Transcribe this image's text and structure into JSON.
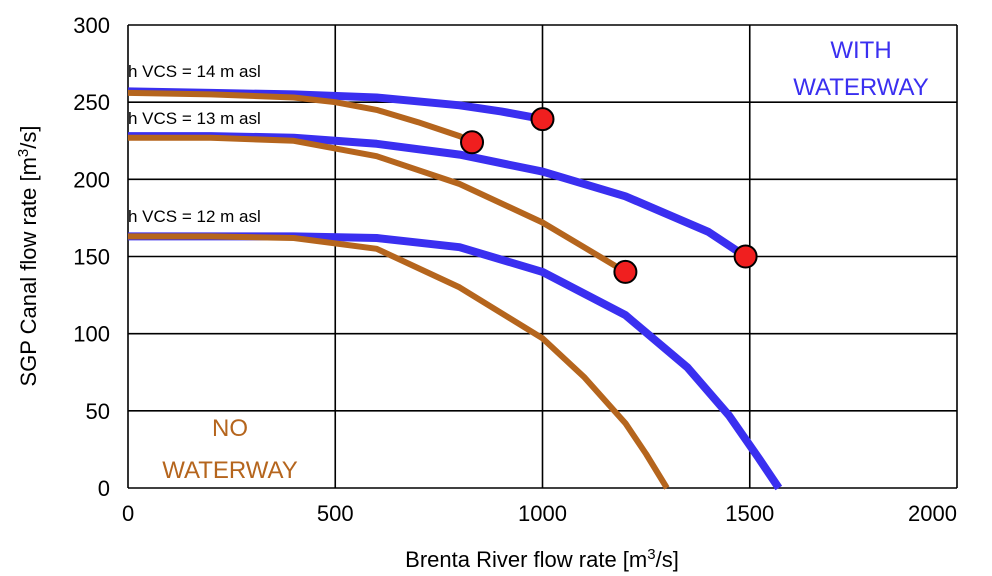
{
  "chart_data": {
    "type": "line",
    "xlabel": "Brenta River flow rate [m",
    "xlabel_sup": "3",
    "xlabel_tail": "/s]",
    "ylabel": "SGP Canal flow rate [m",
    "ylabel_sup": "3",
    "ylabel_tail": "/s]",
    "xlim": [
      0,
      2000
    ],
    "ylim": [
      0,
      300
    ],
    "x_ticks": [
      0,
      500,
      1000,
      1500,
      2000
    ],
    "y_ticks": [
      0,
      50,
      100,
      150,
      200,
      250,
      300
    ],
    "grid": true,
    "colors": {
      "with_waterway": "#3a2ff0",
      "no_waterway": "#b5651d",
      "marker": "#f01f1f"
    },
    "annotations": [
      {
        "id": "with-waterway-line1",
        "text": "WITH",
        "color": "#3a2ff0"
      },
      {
        "id": "with-waterway-line2",
        "text": "WATERWAY",
        "color": "#3a2ff0"
      },
      {
        "id": "no-waterway-line1",
        "text": "NO",
        "color": "#b5651d"
      },
      {
        "id": "no-waterway-line2",
        "text": "WATERWAY",
        "color": "#b5651d"
      },
      {
        "id": "label-14",
        "text": "h VCS = 14 m asl",
        "color": "#000000"
      },
      {
        "id": "label-13",
        "text": "h VCS = 13 m asl",
        "color": "#000000"
      },
      {
        "id": "label-12",
        "text": "h VCS = 12 m asl",
        "color": "#000000"
      }
    ],
    "series": [
      {
        "group": "with_waterway",
        "level": "14",
        "x": [
          0,
          200,
          400,
          600,
          800,
          900,
          1000
        ],
        "y": [
          257,
          256,
          255,
          253,
          248,
          244,
          239
        ]
      },
      {
        "group": "no_waterway",
        "level": "14",
        "x": [
          0,
          200,
          400,
          500,
          600,
          700,
          800,
          830
        ],
        "y": [
          256,
          255,
          253,
          250,
          245,
          237,
          228,
          224
        ]
      },
      {
        "group": "with_waterway",
        "level": "13",
        "x": [
          0,
          200,
          400,
          600,
          800,
          1000,
          1200,
          1400,
          1490
        ],
        "y": [
          228,
          228,
          227,
          223,
          216,
          205,
          189,
          166,
          150
        ]
      },
      {
        "group": "no_waterway",
        "level": "13",
        "x": [
          0,
          200,
          400,
          600,
          800,
          1000,
          1100,
          1200
        ],
        "y": [
          227,
          227,
          225,
          215,
          197,
          172,
          156,
          140
        ]
      },
      {
        "group": "with_waterway",
        "level": "12",
        "x": [
          0,
          200,
          400,
          600,
          800,
          1000,
          1200,
          1350,
          1450,
          1520,
          1570
        ],
        "y": [
          163,
          163,
          163,
          162,
          156,
          140,
          112,
          78,
          47,
          20,
          0
        ]
      },
      {
        "group": "no_waterway",
        "level": "12",
        "x": [
          0,
          200,
          400,
          600,
          800,
          1000,
          1100,
          1200,
          1250,
          1300
        ],
        "y": [
          163,
          163,
          162,
          155,
          130,
          97,
          72,
          42,
          22,
          0
        ]
      }
    ],
    "markers": [
      {
        "x": 1000,
        "y": 239
      },
      {
        "x": 830,
        "y": 224
      },
      {
        "x": 1490,
        "y": 150
      },
      {
        "x": 1200,
        "y": 140
      }
    ]
  }
}
